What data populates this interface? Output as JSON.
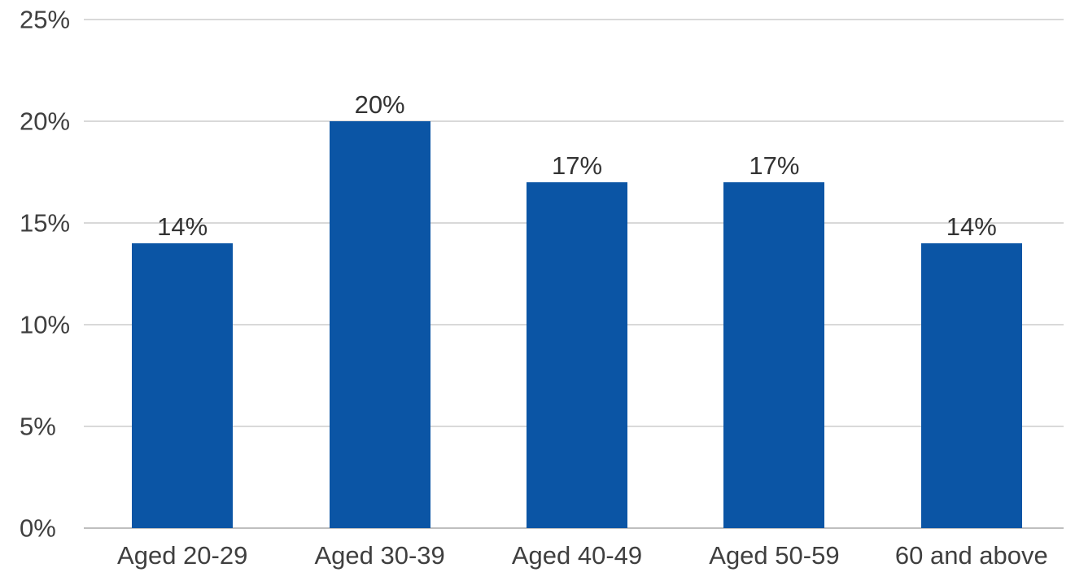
{
  "chart_data": {
    "type": "bar",
    "title": "",
    "xlabel": "",
    "ylabel": "",
    "categories": [
      "Aged 20-29",
      "Aged 30-39",
      "Aged 40-49",
      "Aged 50-59",
      "60 and above"
    ],
    "series": [
      {
        "name": "percentage",
        "values": [
          14,
          20,
          17,
          17,
          14
        ]
      }
    ],
    "data_labels": [
      "14%",
      "20%",
      "17%",
      "17%",
      "14%"
    ],
    "ylim": [
      0,
      25
    ],
    "y_ticks": [
      {
        "value": 0,
        "label": "0%"
      },
      {
        "value": 5,
        "label": "5%"
      },
      {
        "value": 10,
        "label": "10%"
      },
      {
        "value": 15,
        "label": "15%"
      },
      {
        "value": 20,
        "label": "20%"
      },
      {
        "value": 25,
        "label": "25%"
      }
    ],
    "grid": "horizontal",
    "legend": "none",
    "colors": {
      "bar": "#0B55A5",
      "gridline": "#D9D9D9",
      "axis_line": "#BFBFBF",
      "data_label": "#333333",
      "tick_label": "#3F3F3F",
      "background": "#FFFFFF"
    }
  }
}
